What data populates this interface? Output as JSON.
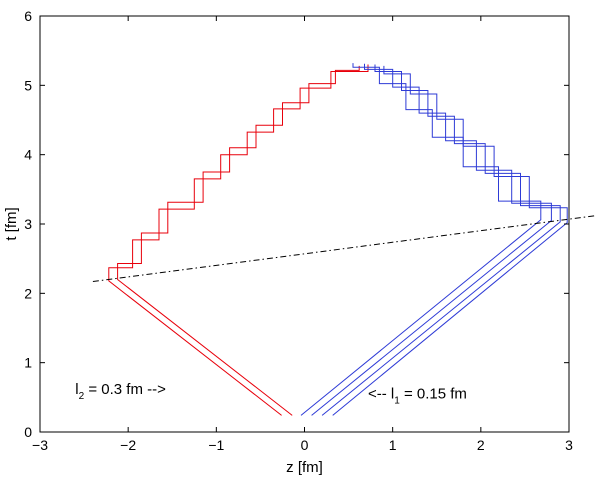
{
  "chart_data": {
    "type": "line",
    "title": "",
    "xlabel": "z [fm]",
    "ylabel": "t [fm]",
    "xlim": [
      -3,
      3
    ],
    "ylim": [
      0,
      6
    ],
    "x_ticks": [
      -3,
      -2,
      -1,
      0,
      1,
      2,
      3
    ],
    "y_ticks": [
      0,
      1,
      2,
      3,
      4,
      5,
      6
    ],
    "x_tick_labels": [
      "−3",
      "−2",
      "−1",
      "0",
      "1",
      "2",
      "3"
    ],
    "y_tick_labels": [
      "0",
      "1",
      "2",
      "3",
      "4",
      "5",
      "6"
    ],
    "grid": false,
    "legend": "none",
    "colors": {
      "red": "#e8000b",
      "blue": "#2e3bd6",
      "axis": "#000000",
      "reference": "#000000"
    },
    "reference_line": {
      "style": "dash-dot",
      "x": [
        -2.4,
        3.3
      ],
      "y": [
        2.17,
        3.12
      ]
    },
    "series": [
      {
        "color": "red",
        "x": [
          -0.14,
          -2.12,
          -1.85,
          -1.55,
          -1.15,
          -0.85,
          -0.55,
          -0.25,
          0.05,
          0.35,
          0.62
        ],
        "y": [
          0.24,
          2.2,
          2.66,
          3.08,
          3.55,
          3.95,
          4.25,
          4.6,
          4.9,
          5.15,
          5.28
        ]
      },
      {
        "color": "red",
        "x": [
          -0.26,
          -2.22,
          -1.95,
          -1.65,
          -1.25,
          -0.95,
          -0.65,
          -0.35,
          -0.05,
          0.3,
          0.72
        ],
        "y": [
          0.24,
          2.18,
          2.56,
          2.98,
          3.45,
          3.85,
          4.15,
          4.5,
          4.82,
          5.1,
          5.3
        ]
      },
      {
        "color": "blue",
        "x": [
          -0.04,
          2.68,
          2.2,
          1.8,
          1.45,
          1.15,
          0.85,
          0.55
        ],
        "y": [
          0.24,
          3.06,
          3.6,
          4.05,
          4.45,
          4.85,
          5.2,
          5.32
        ]
      },
      {
        "color": "blue",
        "x": [
          0.08,
          2.8,
          2.35,
          1.95,
          1.6,
          1.3,
          1.0,
          0.68
        ],
        "y": [
          0.24,
          3.05,
          3.55,
          4.0,
          4.4,
          4.8,
          5.15,
          5.31
        ]
      },
      {
        "color": "blue",
        "x": [
          0.2,
          2.9,
          2.45,
          2.05,
          1.7,
          1.4,
          1.1,
          0.8
        ],
        "y": [
          0.24,
          3.03,
          3.5,
          3.96,
          4.36,
          4.75,
          5.1,
          5.3
        ]
      },
      {
        "color": "blue",
        "x": [
          0.32,
          2.98,
          2.55,
          2.15,
          1.8,
          1.5,
          1.2,
          0.9
        ],
        "y": [
          0.24,
          3.02,
          3.45,
          3.92,
          4.32,
          4.7,
          5.05,
          5.28
        ]
      }
    ],
    "annotations": [
      {
        "text_main": "l",
        "text_sub": "2",
        "text_rest": " = 0.3 fm -->",
        "x": -2.6,
        "y": 0.55
      },
      {
        "text_main": "<-- l",
        "text_sub": "1",
        "text_rest": " = 0.15 fm",
        "x": 0.72,
        "y": 0.48
      }
    ]
  }
}
